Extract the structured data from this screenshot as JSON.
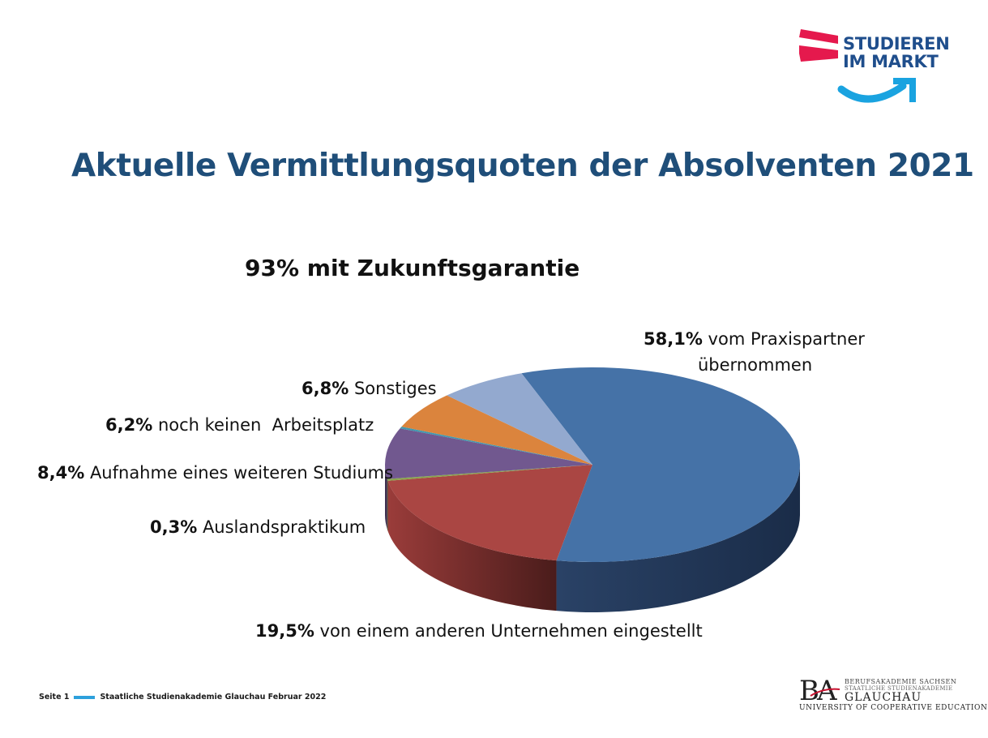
{
  "logo": {
    "line1": "STUDIEREN",
    "line2": "IM MARKT"
  },
  "title": "Aktuelle Vermittlungsquoten der Absolventen 2021",
  "subtitle": "93% mit Zukunftsgarantie",
  "chart_data": {
    "type": "pie",
    "title": "93% mit Zukunftsgarantie",
    "slices": [
      {
        "pct_label": "58,1%",
        "text": "vom Praxispartner übernommen",
        "value": 58.1,
        "color": "#4572a7"
      },
      {
        "pct_label": "19,5%",
        "text": "von einem anderen Unternehmen eingestellt",
        "value": 19.5,
        "color": "#aa4643"
      },
      {
        "pct_label": "0,3%",
        "text": "Auslandspraktikum",
        "value": 0.3,
        "color": "#89a54e"
      },
      {
        "pct_label": "8,4%",
        "text": "Aufnahme eines weiteren Studiums",
        "value": 8.4,
        "color": "#71588f"
      },
      {
        "pct_label": "",
        "text": "",
        "value": 0.3,
        "color": "#4198af"
      },
      {
        "pct_label": "6,2%",
        "text": "noch keinen  Arbeitsplatz",
        "value": 6.2,
        "color": "#db843d"
      },
      {
        "pct_label": "6,8%",
        "text": "Sonstiges",
        "value": 6.8,
        "color": "#93a9cf"
      }
    ],
    "label_58_line1": "vom Praxispartner",
    "label_58_line2": "übernommen"
  },
  "footer": {
    "page": "Seite 1",
    "text": "Staatliche Studienakademie Glauchau Februar 2022"
  },
  "ba_logo": {
    "mark": "BA",
    "line1": "BERUFSAKADEMIE SACHSEN",
    "line2": "STAATLICHE STUDIENAKADEMIE",
    "line3": "GLAUCHAU",
    "line4": "UNIVERSITY OF COOPERATIVE EDUCATION"
  }
}
